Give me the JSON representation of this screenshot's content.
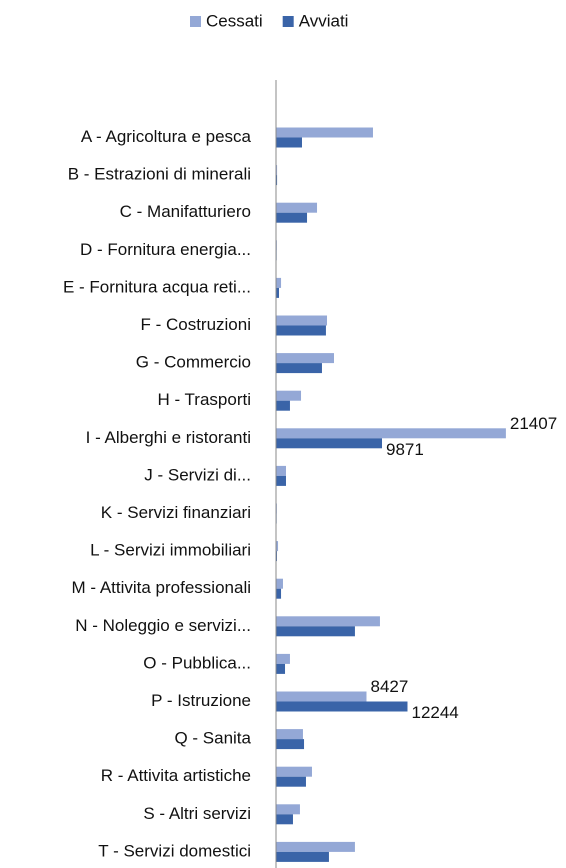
{
  "chart_data": {
    "type": "bar",
    "orientation": "horizontal",
    "categories": [
      "A - Agricoltura e pesca",
      "B - Estrazioni di minerali",
      "C - Manifatturiero",
      "D - Fornitura energia...",
      "E - Fornitura acqua reti...",
      "F - Costruzioni",
      "G - Commercio",
      "H - Trasporti",
      "I - Alberghi e ristoranti",
      "J - Servizi di...",
      "K - Servizi finanziari",
      "L - Servizi immobiliari",
      "M - Attivita professionali",
      "N - Noleggio e servizi...",
      "O - Pubblica...",
      "P - Istruzione",
      "Q - Sanita",
      "R - Attivita artistiche",
      "S - Altri servizi",
      "T - Servizi domestici"
    ],
    "series": [
      {
        "name": "Cessati",
        "color": "#94a8d6",
        "values": [
          9030,
          100,
          3820,
          80,
          470,
          4750,
          5400,
          2330,
          21407,
          930,
          80,
          190,
          650,
          9680,
          1300,
          8427,
          2510,
          3350,
          2230,
          7350
        ]
      },
      {
        "name": "Avviati",
        "color": "#3a64a8",
        "values": [
          2420,
          100,
          2890,
          60,
          280,
          4650,
          4280,
          1300,
          9871,
          930,
          60,
          90,
          470,
          7350,
          840,
          12244,
          2610,
          2790,
          1580,
          4930
        ]
      }
    ],
    "data_labels_at": [
      8,
      15
    ],
    "xlim": [
      0,
      23000
    ],
    "legend": "top"
  }
}
